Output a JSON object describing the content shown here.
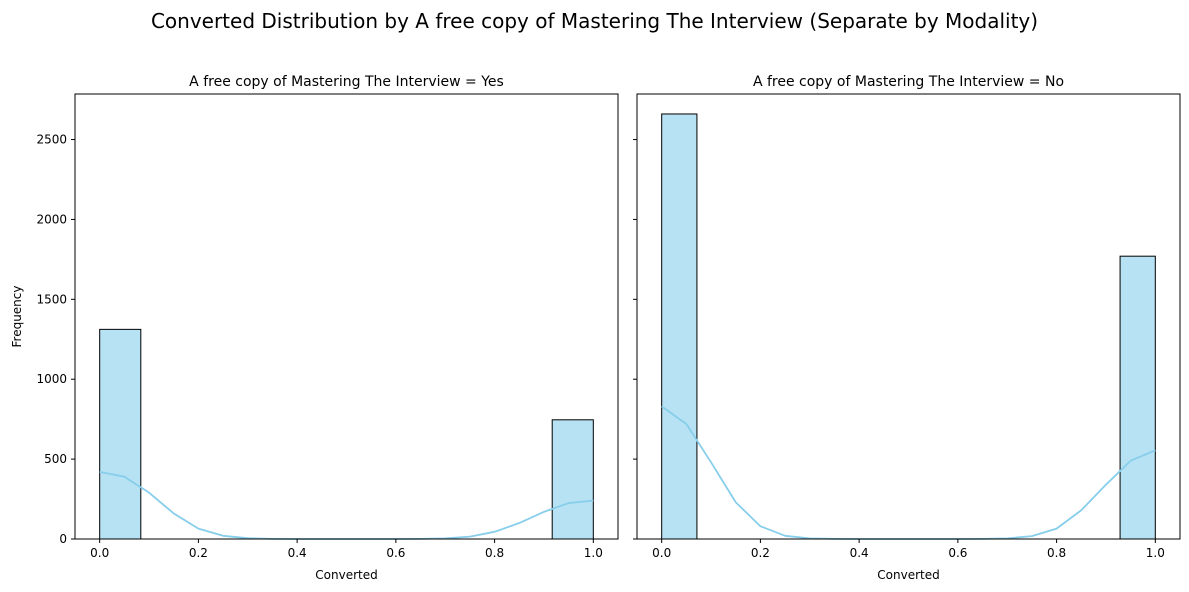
{
  "figure": {
    "suptitle": "Converted Distribution by A free copy of Mastering The Interview (Separate by Modality)"
  },
  "colors": {
    "bar_fill": "#87CEEB",
    "bar_fill_opacity": 0.6,
    "bar_edge": "#000000",
    "kde_line": "#87CEEB"
  },
  "chart_data": [
    {
      "type": "bar",
      "title": "A free copy of Mastering The Interview = Yes",
      "xlabel": "Converted",
      "ylabel": "Frequency",
      "xlim": [
        -0.05,
        1.05
      ],
      "ylim": [
        0,
        2785
      ],
      "xticks": [
        0.0,
        0.2,
        0.4,
        0.6,
        0.8,
        1.0
      ],
      "xtick_labels": [
        "0.0",
        "0.2",
        "0.4",
        "0.6",
        "0.8",
        "1.0"
      ],
      "yticks": [
        0,
        500,
        1000,
        1500,
        2000,
        2500
      ],
      "ytick_labels": [
        "0",
        "500",
        "1000",
        "1500",
        "2000",
        "2500"
      ],
      "show_y_tick_labels": true,
      "grid": false,
      "bins": [
        {
          "x0": 0.0,
          "x1": 0.0833,
          "value": 1312
        },
        {
          "x0": 0.9167,
          "x1": 1.0,
          "value": 746
        }
      ],
      "kde": {
        "x": [
          0.0,
          0.05,
          0.1,
          0.15,
          0.2,
          0.25,
          0.3,
          0.35,
          0.4,
          0.45,
          0.5,
          0.55,
          0.6,
          0.65,
          0.7,
          0.75,
          0.8,
          0.85,
          0.9,
          0.95,
          1.0
        ],
        "y": [
          420,
          390,
          290,
          160,
          65,
          20,
          5,
          1,
          0,
          0,
          0,
          0,
          0,
          1,
          4,
          15,
          45,
          100,
          170,
          225,
          240
        ]
      }
    },
    {
      "type": "bar",
      "title": "A free copy of Mastering The Interview = No",
      "xlabel": "Converted",
      "ylabel": "",
      "xlim": [
        -0.05,
        1.05
      ],
      "ylim": [
        0,
        2785
      ],
      "xticks": [
        0.0,
        0.2,
        0.4,
        0.6,
        0.8,
        1.0
      ],
      "xtick_labels": [
        "0.0",
        "0.2",
        "0.4",
        "0.6",
        "0.8",
        "1.0"
      ],
      "yticks": [
        0,
        500,
        1000,
        1500,
        2000,
        2500
      ],
      "ytick_labels": [
        "",
        "",
        "",
        "",
        "",
        ""
      ],
      "show_y_tick_labels": false,
      "grid": false,
      "bins": [
        {
          "x0": 0.0,
          "x1": 0.0714,
          "value": 2660
        },
        {
          "x0": 0.9286,
          "x1": 1.0,
          "value": 1770
        }
      ],
      "kde": {
        "x": [
          0.0,
          0.05,
          0.1,
          0.15,
          0.2,
          0.25,
          0.3,
          0.35,
          0.4,
          0.45,
          0.5,
          0.55,
          0.6,
          0.65,
          0.7,
          0.75,
          0.8,
          0.85,
          0.9,
          0.95,
          1.0
        ],
        "y": [
          830,
          720,
          480,
          230,
          80,
          20,
          4,
          1,
          0,
          0,
          0,
          0,
          0,
          1,
          4,
          18,
          65,
          180,
          340,
          490,
          555
        ]
      }
    }
  ]
}
